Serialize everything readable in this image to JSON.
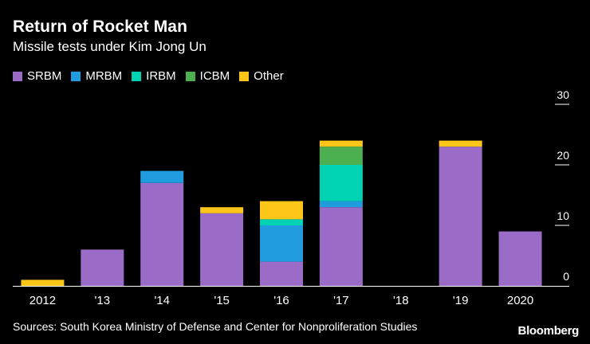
{
  "chart_data": {
    "type": "bar",
    "stacked": true,
    "title": "Return of Rocket Man",
    "subtitle": "Missile tests under Kim Jong Un",
    "categories": [
      "2012",
      "'13",
      "'14",
      "'15",
      "'16",
      "'17",
      "'18",
      "'19",
      "2020"
    ],
    "series": [
      {
        "name": "SRBM",
        "color": "#9b6bc8",
        "values": [
          0,
          6,
          17,
          12,
          4,
          13,
          0,
          23,
          9
        ]
      },
      {
        "name": "MRBM",
        "color": "#1f9bde",
        "values": [
          0,
          0,
          2,
          0,
          6,
          1,
          0,
          0,
          0
        ]
      },
      {
        "name": "IRBM",
        "color": "#00d3b4",
        "values": [
          0,
          0,
          0,
          0,
          1,
          6,
          0,
          0,
          0
        ]
      },
      {
        "name": "ICBM",
        "color": "#4caf50",
        "values": [
          0,
          0,
          0,
          0,
          0,
          3,
          0,
          0,
          0
        ]
      },
      {
        "name": "Other",
        "color": "#ffc61a",
        "values": [
          1,
          0,
          0,
          1,
          3,
          1,
          0,
          1,
          0
        ]
      }
    ],
    "ylim": [
      0,
      30
    ],
    "yticks": [
      0,
      10,
      20,
      30
    ],
    "xlabel": "",
    "ylabel": "",
    "legend_position": "top-left",
    "axis_side": "right"
  },
  "source": "Sources: South Korea Ministry of Defense and Center for Nonproliferation Studies",
  "brand": "Bloomberg"
}
